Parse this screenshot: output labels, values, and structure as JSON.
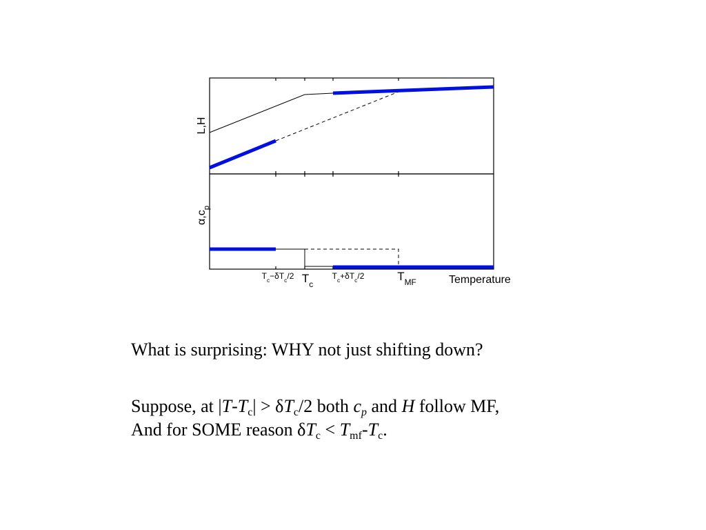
{
  "figure": {
    "top_ylabel": [
      {
        "text": "L,H"
      }
    ],
    "bottom_ylabel": [
      {
        "text": "α,c"
      },
      {
        "text": "p",
        "sub": true
      }
    ],
    "ticks": [
      [
        {
          "text": "T"
        },
        {
          "text": "c",
          "sub": true
        },
        {
          "text": "−δT"
        },
        {
          "text": "c",
          "sub": true
        },
        {
          "text": "/2"
        }
      ],
      [
        {
          "text": "T"
        },
        {
          "text": "c",
          "sub": true
        }
      ],
      [
        {
          "text": "T"
        },
        {
          "text": "c",
          "sub": true
        },
        {
          "text": "+δT"
        },
        {
          "text": "c",
          "sub": true
        },
        {
          "text": "/2"
        }
      ],
      [
        {
          "text": "T"
        },
        {
          "text": "MF",
          "sub": true
        }
      ]
    ],
    "xlabel": [
      {
        "text": "Temperature"
      }
    ]
  },
  "text": {
    "question": [
      {
        "text": "What is surprising: WHY not just shifting down?"
      }
    ],
    "line1": [
      {
        "text": "Suppose, at |"
      },
      {
        "text": "T",
        "italic": true
      },
      {
        "text": "-"
      },
      {
        "text": "T",
        "italic": true
      },
      {
        "text": "c",
        "sub": true
      },
      {
        "text": "| > δ"
      },
      {
        "text": "T",
        "italic": true
      },
      {
        "text": "c",
        "sub": true
      },
      {
        "text": "/2 both "
      },
      {
        "text": "c",
        "italic": true
      },
      {
        "text": "p",
        "italic": true,
        "sub": true
      },
      {
        "text": " and "
      },
      {
        "text": "H",
        "italic": true
      },
      {
        "text": " follow MF,"
      }
    ],
    "line2": [
      {
        "text": "And for SOME reason δ"
      },
      {
        "text": "T",
        "italic": true
      },
      {
        "text": "c",
        "sub": true
      },
      {
        "text": " < "
      },
      {
        "text": "T",
        "italic": true
      },
      {
        "text": "mf",
        "sub": true
      },
      {
        "text": "-"
      },
      {
        "text": "T",
        "italic": true
      },
      {
        "text": "c",
        "sub": true
      },
      {
        "text": "."
      }
    ]
  }
}
